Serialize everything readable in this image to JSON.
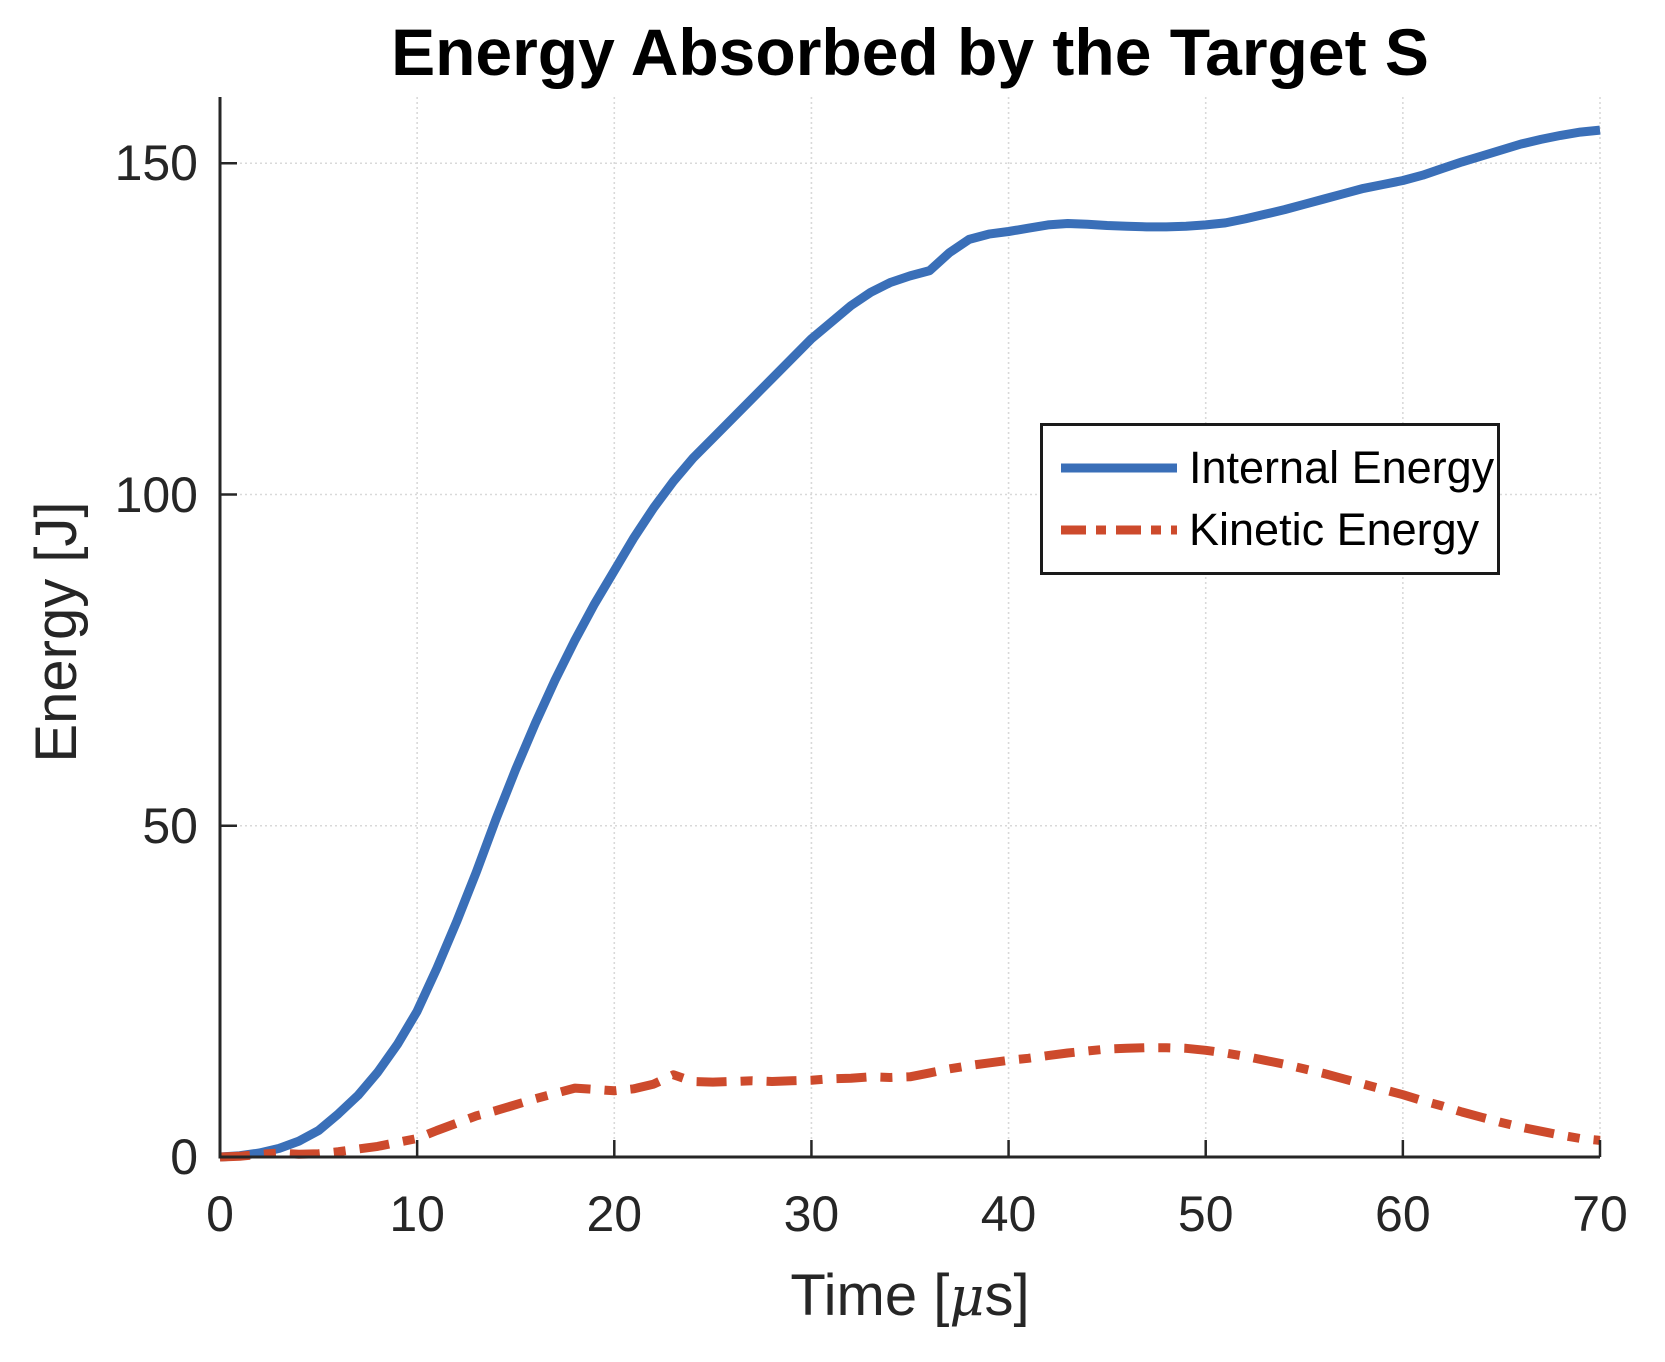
{
  "figure": {
    "background": "#ffffff"
  },
  "chart_data": {
    "type": "line",
    "title": "Energy Absorbed by the Target S",
    "xlabel_pre": "Time [",
    "xlabel_mu": "μ",
    "xlabel_post": "s]",
    "ylabel": "Energy [J]",
    "xlim": [
      0,
      70
    ],
    "ylim": [
      0,
      160
    ],
    "x_ticks": [
      0,
      10,
      20,
      30,
      40,
      50,
      60,
      70
    ],
    "y_ticks": [
      0,
      50,
      100,
      150
    ],
    "grid": "on",
    "grid_color": "#d9d9d9",
    "axis_color": "#262626",
    "tick_label_color": "#262626",
    "legend": {
      "position": "upper-right",
      "border_color": "#1a1a1a",
      "entries": [
        {
          "label": "Internal Energy",
          "style": "solid",
          "color": "#3A6FB8"
        },
        {
          "label": "Kinetic Energy",
          "style": "dash-dot",
          "color": "#CD4A2C"
        }
      ]
    },
    "series": [
      {
        "name": "Internal Energy",
        "color": "#3A6FB8",
        "style": "solid",
        "line_width": 9,
        "x": [
          0,
          1,
          2,
          3,
          4,
          5,
          6,
          7,
          8,
          9,
          10,
          11,
          12,
          13,
          14,
          15,
          16,
          17,
          18,
          19,
          20,
          21,
          22,
          23,
          24,
          25,
          26,
          27,
          28,
          29,
          30,
          31,
          32,
          33,
          34,
          35,
          36,
          37,
          38,
          39,
          40,
          41,
          42,
          43,
          44,
          45,
          46,
          47,
          48,
          49,
          50,
          51,
          52,
          53,
          54,
          55,
          56,
          57,
          58,
          59,
          60,
          61,
          62,
          63,
          64,
          65,
          66,
          67,
          68,
          69,
          70
        ],
        "y": [
          0,
          0.2,
          0.6,
          1.3,
          2.4,
          4,
          6.5,
          9.3,
          12.8,
          17,
          22,
          28.5,
          35.5,
          43,
          51,
          58.5,
          65.5,
          72,
          78,
          83.5,
          88.5,
          93.5,
          98,
          102,
          105.5,
          108.5,
          111.5,
          114.5,
          117.5,
          120.5,
          123.5,
          126,
          128.5,
          130.5,
          132,
          133,
          133.8,
          136.5,
          138.5,
          139.3,
          139.7,
          140.2,
          140.7,
          140.9,
          140.8,
          140.6,
          140.5,
          140.4,
          140.4,
          140.5,
          140.7,
          141,
          141.6,
          142.3,
          143,
          143.8,
          144.6,
          145.4,
          146.2,
          146.8,
          147.4,
          148.2,
          149.2,
          150.2,
          151.1,
          152,
          152.9,
          153.6,
          154.2,
          154.7,
          155
        ]
      },
      {
        "name": "Kinetic Energy",
        "color": "#CD4A2C",
        "style": "dash-dot",
        "line_width": 9,
        "x": [
          0,
          1,
          2,
          3,
          4,
          5,
          6,
          7,
          8,
          9,
          10,
          11,
          12,
          13,
          14,
          15,
          16,
          17,
          18,
          19,
          20,
          21,
          22,
          23,
          24,
          25,
          26,
          27,
          28,
          29,
          30,
          31,
          32,
          33,
          34,
          35,
          36,
          37,
          38,
          39,
          40,
          41,
          42,
          43,
          44,
          45,
          46,
          47,
          48,
          49,
          50,
          51,
          52,
          53,
          54,
          55,
          56,
          57,
          58,
          59,
          60,
          61,
          62,
          63,
          64,
          65,
          66,
          67,
          68,
          69,
          70
        ],
        "y": [
          0,
          0.1,
          0.4,
          0.6,
          0.4,
          0.5,
          0.8,
          1.2,
          1.6,
          2.2,
          2.8,
          4,
          5.1,
          6.2,
          7,
          7.9,
          8.8,
          9.6,
          10.4,
          10.2,
          10,
          10.3,
          11,
          12.4,
          11.4,
          11.3,
          11.4,
          11.5,
          11.4,
          11.5,
          11.6,
          11.8,
          11.9,
          12.1,
          12,
          12.1,
          12.7,
          13.3,
          13.8,
          14.2,
          14.6,
          14.9,
          15.3,
          15.7,
          16,
          16.3,
          16.4,
          16.5,
          16.5,
          16.4,
          16.1,
          15.7,
          15.2,
          14.6,
          14,
          13.3,
          12.6,
          11.8,
          11,
          10.2,
          9.4,
          8.5,
          7.7,
          6.8,
          6,
          5.2,
          4.5,
          3.9,
          3.3,
          2.8,
          2.5
        ]
      }
    ]
  }
}
